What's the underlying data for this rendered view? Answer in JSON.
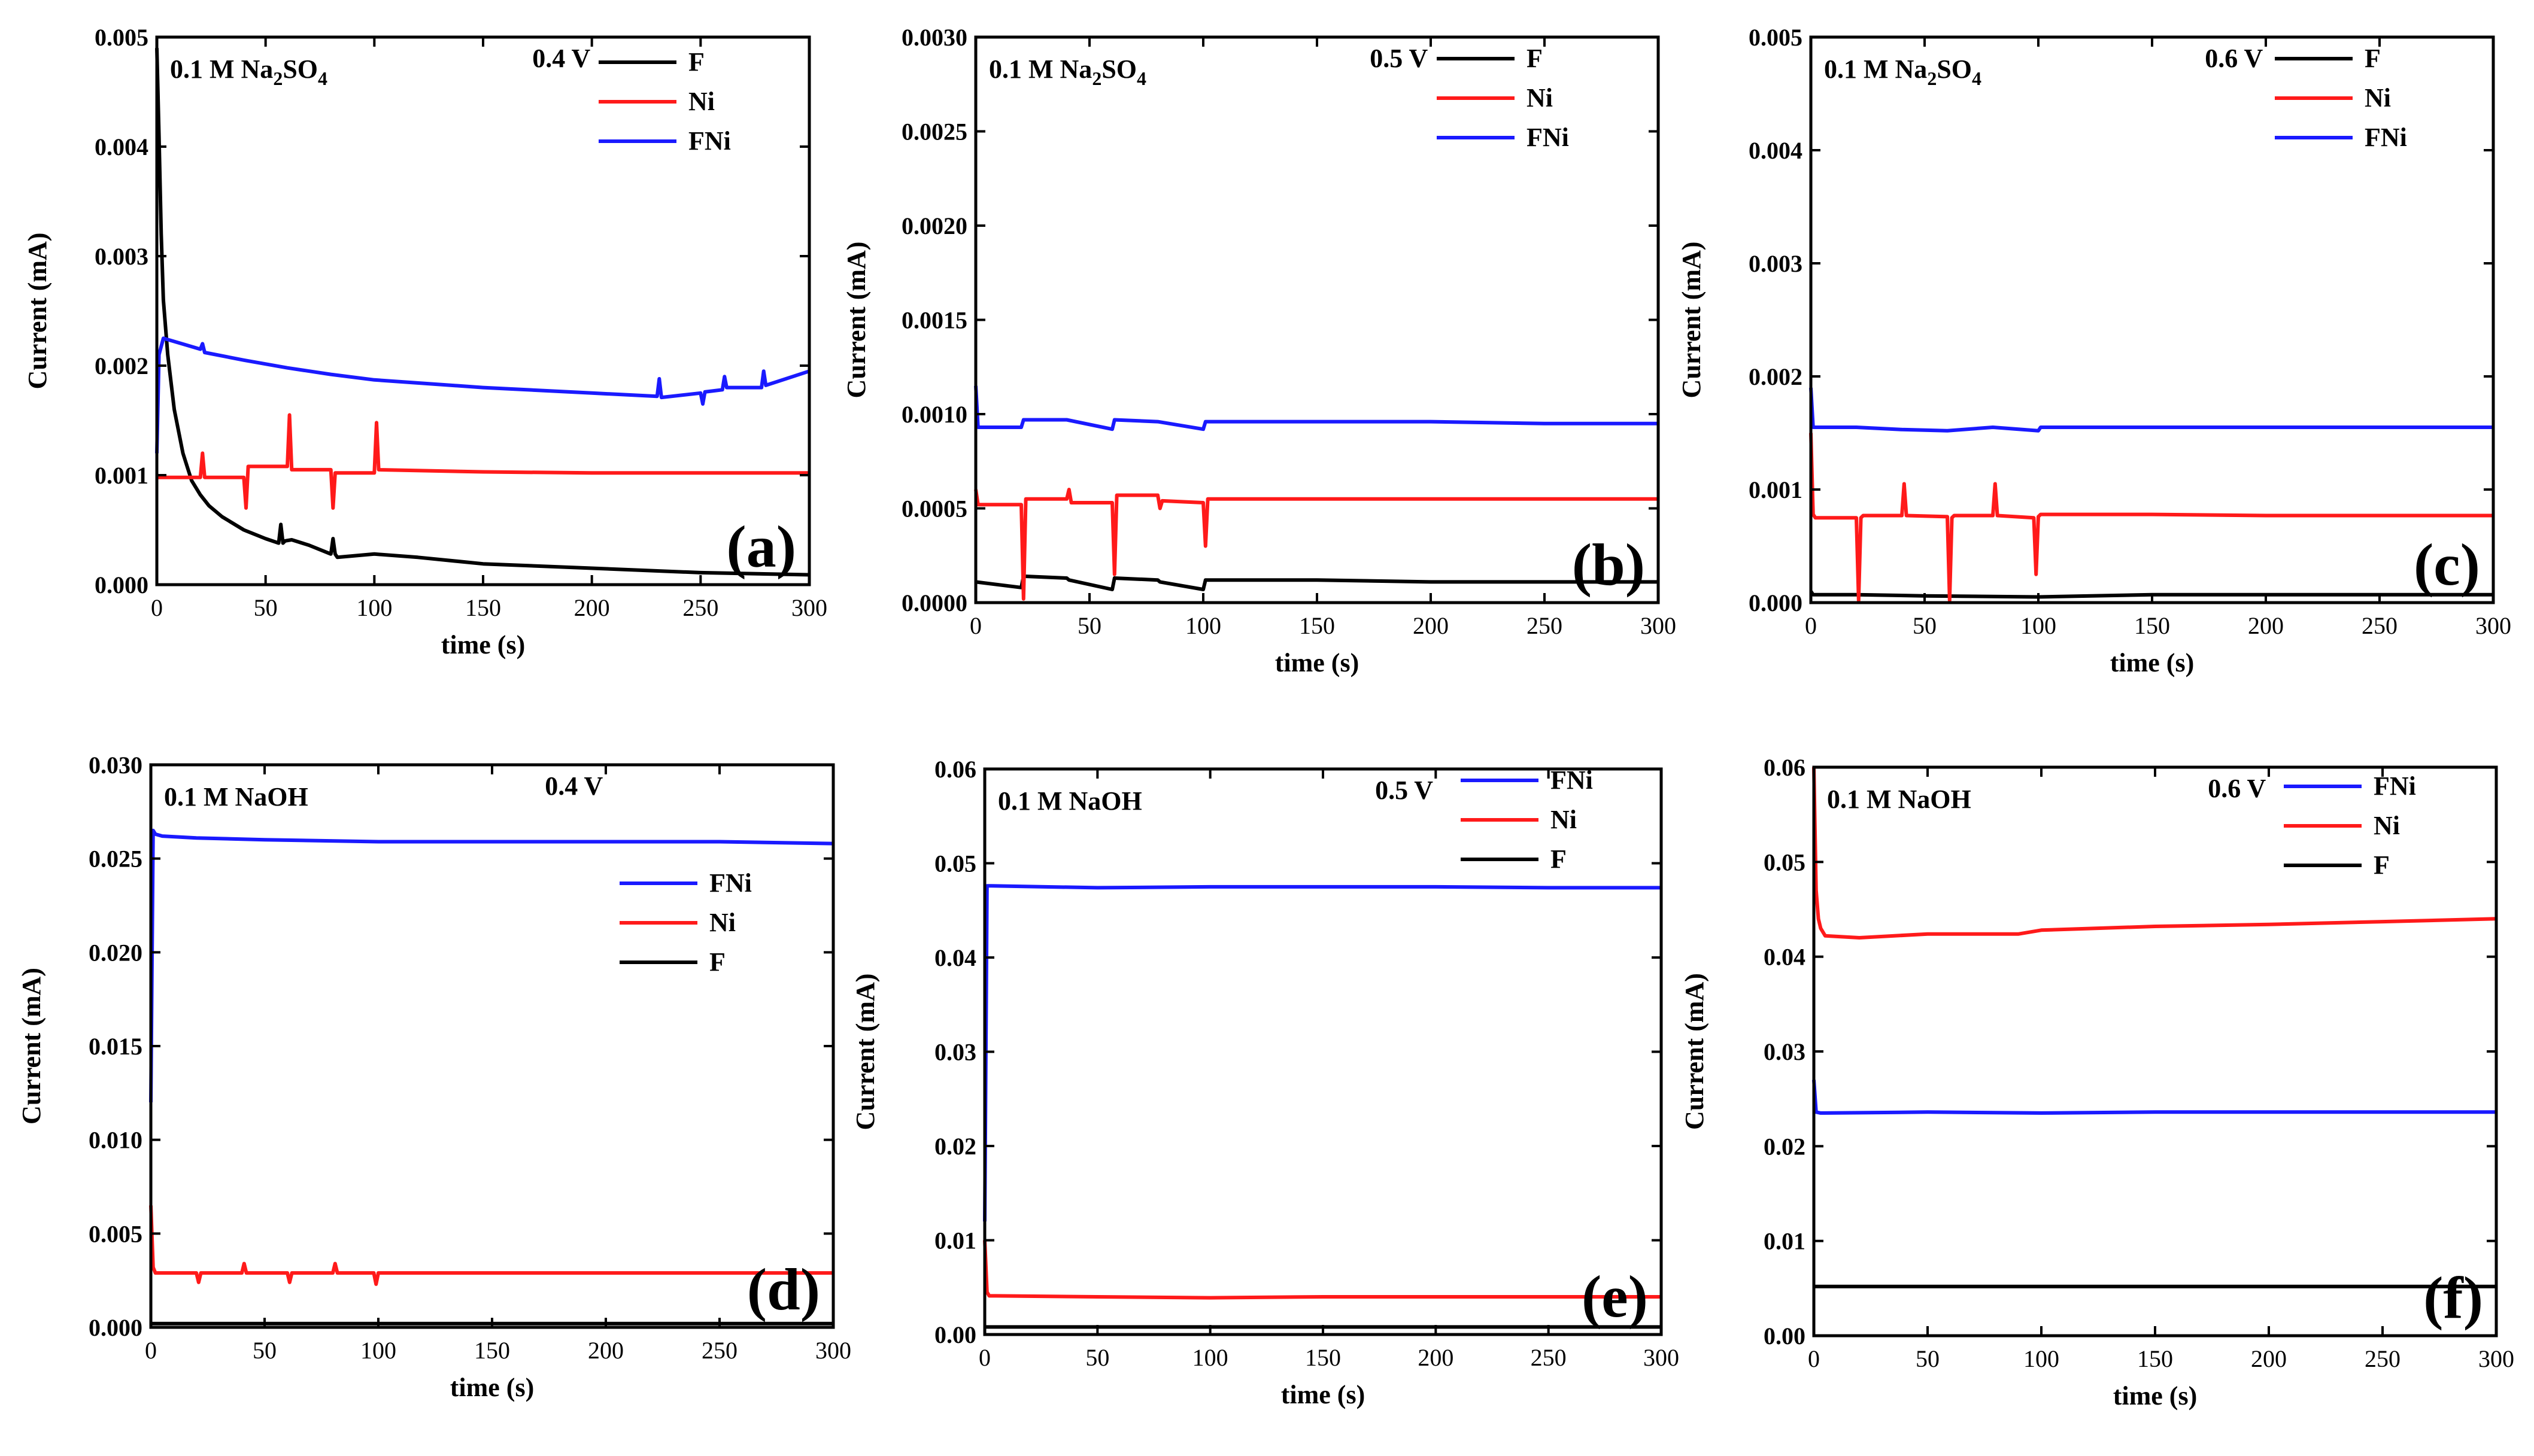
{
  "panels": [
    {
      "letter": "(a)",
      "electrolyte_prefix": "0.1 M Na",
      "electrolyte_sub": "2",
      "electrolyte_mid": "SO",
      "electrolyte_sub2": "4",
      "voltage": "0.4 V",
      "xlabel": "time (s)",
      "ylabel": "Current (mA)",
      "xlim": [
        0,
        300
      ],
      "ylim": [
        0,
        0.005
      ],
      "xticks": [
        "0",
        "50",
        "100",
        "150",
        "200",
        "250",
        "300"
      ],
      "yticks": [
        "0.000",
        "0.001",
        "0.002",
        "0.003",
        "0.004",
        "0.005"
      ],
      "legend_order": [
        "F",
        "Ni",
        "FNi"
      ]
    },
    {
      "letter": "(b)",
      "electrolyte_prefix": "0.1 M Na",
      "electrolyte_sub": "2",
      "electrolyte_mid": "SO",
      "electrolyte_sub2": "4",
      "voltage": "0.5 V",
      "xlabel": "time (s)",
      "ylabel": "Current (mA)",
      "xlim": [
        0,
        300
      ],
      "ylim": [
        0,
        0.003
      ],
      "xticks": [
        "0",
        "50",
        "100",
        "150",
        "200",
        "250",
        "300"
      ],
      "yticks": [
        "0.0000",
        "0.0005",
        "0.0010",
        "0.0015",
        "0.0020",
        "0.0025",
        "0.0030"
      ],
      "legend_order": [
        "F",
        "Ni",
        "FNi"
      ]
    },
    {
      "letter": "(c)",
      "electrolyte_prefix": "0.1 M Na",
      "electrolyte_sub": "2",
      "electrolyte_mid": "SO",
      "electrolyte_sub2": "4",
      "voltage": "0.6 V",
      "xlabel": "time (s)",
      "ylabel": "Current (mA)",
      "xlim": [
        0,
        300
      ],
      "ylim": [
        0,
        0.005
      ],
      "xticks": [
        "0",
        "50",
        "100",
        "150",
        "200",
        "250",
        "300"
      ],
      "yticks": [
        "0.000",
        "0.001",
        "0.002",
        "0.003",
        "0.004",
        "0.005"
      ],
      "legend_order": [
        "F",
        "Ni",
        "FNi"
      ]
    },
    {
      "letter": "(d)",
      "electrolyte_prefix": "0.1 M NaOH",
      "electrolyte_sub": "",
      "electrolyte_mid": "",
      "electrolyte_sub2": "",
      "voltage": "0.4 V",
      "xlabel": "time (s)",
      "ylabel": "Current (mA)",
      "xlim": [
        0,
        300
      ],
      "ylim": [
        0,
        0.03
      ],
      "xticks": [
        "0",
        "50",
        "100",
        "150",
        "200",
        "250",
        "300"
      ],
      "yticks": [
        "0.000",
        "0.005",
        "0.010",
        "0.015",
        "0.020",
        "0.025",
        "0.030"
      ],
      "legend_order": [
        "FNi",
        "Ni",
        "F"
      ]
    },
    {
      "letter": "(e)",
      "electrolyte_prefix": "0.1 M NaOH",
      "electrolyte_sub": "",
      "electrolyte_mid": "",
      "electrolyte_sub2": "",
      "voltage": "0.5 V",
      "xlabel": "time (s)",
      "ylabel": "Current (mA)",
      "xlim": [
        0,
        300
      ],
      "ylim": [
        0,
        0.06
      ],
      "xticks": [
        "0",
        "50",
        "100",
        "150",
        "200",
        "250",
        "300"
      ],
      "yticks": [
        "0.00",
        "0.01",
        "0.02",
        "0.03",
        "0.04",
        "0.05",
        "0.06"
      ],
      "legend_order": [
        "FNi",
        "Ni",
        "F"
      ]
    },
    {
      "letter": "(f)",
      "electrolyte_prefix": "0.1 M NaOH",
      "electrolyte_sub": "",
      "electrolyte_mid": "",
      "electrolyte_sub2": "",
      "voltage": "0.6 V",
      "xlabel": "time (s)",
      "ylabel": "Current (mA)",
      "xlim": [
        0,
        300
      ],
      "ylim": [
        0,
        0.06
      ],
      "xticks": [
        "0",
        "50",
        "100",
        "150",
        "200",
        "250",
        "300"
      ],
      "yticks": [
        "0.00",
        "0.01",
        "0.02",
        "0.03",
        "0.04",
        "0.05",
        "0.06"
      ],
      "legend_order": [
        "FNi",
        "Ni",
        "F"
      ]
    }
  ],
  "series_colors": {
    "F": "#000000",
    "Ni": "#ff1a1a",
    "FNi": "#1a1aff"
  },
  "chart_data": [
    {
      "type": "line",
      "title": "0.1 M Na2SO4 0.4 V (a)",
      "xlabel": "time (s)",
      "ylabel": "Current (mA)",
      "xlim": [
        0,
        300
      ],
      "ylim": [
        0,
        0.005
      ],
      "legend": "top-right",
      "series": [
        {
          "name": "F",
          "x": [
            0,
            1,
            2,
            3,
            5,
            8,
            12,
            16,
            20,
            24,
            30,
            40,
            50,
            56,
            57,
            58,
            59,
            62,
            70,
            80,
            81,
            82,
            83,
            100,
            120,
            150,
            200,
            250,
            300
          ],
          "values": [
            0.0049,
            0.0041,
            0.0032,
            0.0026,
            0.0021,
            0.0016,
            0.0012,
            0.00095,
            0.00082,
            0.00072,
            0.00062,
            0.0005,
            0.00042,
            0.00038,
            0.00055,
            0.00038,
            0.0004,
            0.00041,
            0.00036,
            0.00028,
            0.00042,
            0.00028,
            0.00025,
            0.00028,
            0.00025,
            0.00019,
            0.00015,
            0.00011,
            9e-05
          ]
        },
        {
          "name": "Ni",
          "x": [
            0,
            1,
            20,
            21,
            22,
            40,
            41,
            42,
            60,
            61,
            62,
            80,
            81,
            82,
            100,
            101,
            102,
            150,
            200,
            250,
            300
          ],
          "values": [
            0.00098,
            0.00098,
            0.00098,
            0.0012,
            0.00098,
            0.00098,
            0.0007,
            0.00108,
            0.00108,
            0.00155,
            0.00105,
            0.00105,
            0.0007,
            0.00102,
            0.00102,
            0.00148,
            0.00105,
            0.00103,
            0.00102,
            0.00102,
            0.00102
          ]
        },
        {
          "name": "FNi",
          "x": [
            0,
            1,
            3,
            20,
            21,
            22,
            40,
            60,
            80,
            100,
            150,
            200,
            230,
            231,
            232,
            250,
            251,
            252,
            260,
            261,
            262,
            278,
            279,
            280,
            300
          ],
          "values": [
            0.0012,
            0.0021,
            0.00225,
            0.00215,
            0.0022,
            0.00212,
            0.00205,
            0.00198,
            0.00192,
            0.00187,
            0.0018,
            0.00175,
            0.00172,
            0.00188,
            0.00171,
            0.00175,
            0.00165,
            0.00176,
            0.00178,
            0.0019,
            0.0018,
            0.0018,
            0.00195,
            0.00182,
            0.00195
          ]
        }
      ]
    },
    {
      "type": "line",
      "title": "0.1 M Na2SO4 0.5 V (b)",
      "xlabel": "time (s)",
      "ylabel": "Current (mA)",
      "xlim": [
        0,
        300
      ],
      "ylim": [
        0,
        0.003
      ],
      "legend": "top-right",
      "series": [
        {
          "name": "F",
          "x": [
            0,
            20,
            21,
            40,
            41,
            60,
            61,
            80,
            81,
            100,
            101,
            150,
            200,
            250,
            300
          ],
          "values": [
            0.00011,
            8e-05,
            0.00014,
            0.00013,
            0.00012,
            7e-05,
            0.00013,
            0.00012,
            0.00011,
            7e-05,
            0.00012,
            0.00012,
            0.00011,
            0.00011,
            0.00011
          ]
        },
        {
          "name": "Ni",
          "x": [
            0,
            1,
            20,
            21,
            22,
            23,
            40,
            41,
            42,
            60,
            61,
            62,
            63,
            80,
            81,
            82,
            100,
            101,
            102,
            103,
            150,
            200,
            250,
            300
          ],
          "values": [
            0.0006,
            0.00052,
            0.00052,
            2e-05,
            0.00055,
            0.00055,
            0.00055,
            0.0006,
            0.00053,
            0.00053,
            0.00015,
            0.00057,
            0.00057,
            0.00057,
            0.0005,
            0.00054,
            0.00053,
            0.0003,
            0.00055,
            0.00055,
            0.00055,
            0.00055,
            0.00055,
            0.00055
          ]
        },
        {
          "name": "FNi",
          "x": [
            0,
            1,
            20,
            21,
            40,
            60,
            61,
            80,
            100,
            101,
            150,
            200,
            250,
            300
          ],
          "values": [
            0.00115,
            0.00093,
            0.00093,
            0.00097,
            0.00097,
            0.00092,
            0.00097,
            0.00096,
            0.00092,
            0.00096,
            0.00096,
            0.00096,
            0.00095,
            0.00095
          ]
        }
      ]
    },
    {
      "type": "line",
      "title": "0.1 M Na2SO4 0.6 V (c)",
      "xlabel": "time (s)",
      "ylabel": "Current (mA)",
      "xlim": [
        0,
        300
      ],
      "ylim": [
        0,
        0.005
      ],
      "legend": "top-right",
      "series": [
        {
          "name": "F",
          "x": [
            0,
            1,
            20,
            50,
            100,
            150,
            200,
            250,
            300
          ],
          "values": [
            0.0001,
            7e-05,
            7e-05,
            6e-05,
            5e-05,
            7e-05,
            7e-05,
            7e-05,
            7e-05
          ]
        },
        {
          "name": "Ni",
          "x": [
            0,
            1,
            2,
            20,
            21,
            22,
            23,
            40,
            41,
            42,
            60,
            61,
            62,
            63,
            80,
            81,
            82,
            98,
            99,
            100,
            101,
            150,
            200,
            250,
            300
          ],
          "values": [
            0.0015,
            0.00078,
            0.00075,
            0.00075,
            2e-05,
            0.00075,
            0.00077,
            0.00077,
            0.00105,
            0.00077,
            0.00076,
            2e-05,
            0.00075,
            0.00077,
            0.00077,
            0.00105,
            0.00077,
            0.00075,
            0.00025,
            0.00076,
            0.00078,
            0.00078,
            0.00077,
            0.00077,
            0.00077
          ]
        },
        {
          "name": "FNi",
          "x": [
            0,
            1,
            2,
            20,
            40,
            60,
            80,
            100,
            101,
            150,
            200,
            250,
            300
          ],
          "values": [
            0.0019,
            0.00155,
            0.00155,
            0.00155,
            0.00153,
            0.00152,
            0.00155,
            0.00152,
            0.00155,
            0.00155,
            0.00155,
            0.00155,
            0.00155
          ]
        }
      ]
    },
    {
      "type": "line",
      "title": "0.1 M NaOH 0.4 V (d)",
      "xlabel": "time (s)",
      "ylabel": "Current (mA)",
      "xlim": [
        0,
        300
      ],
      "ylim": [
        0,
        0.03
      ],
      "legend": "center-right",
      "series": [
        {
          "name": "FNi",
          "x": [
            0,
            1,
            2,
            5,
            20,
            50,
            100,
            150,
            200,
            250,
            300
          ],
          "values": [
            0.012,
            0.0265,
            0.0263,
            0.0262,
            0.0261,
            0.026,
            0.0259,
            0.0259,
            0.0259,
            0.0259,
            0.0258
          ]
        },
        {
          "name": "Ni",
          "x": [
            0,
            1,
            2,
            20,
            21,
            22,
            40,
            41,
            42,
            60,
            61,
            62,
            80,
            81,
            82,
            98,
            99,
            100,
            150,
            200,
            250,
            300
          ],
          "values": [
            0.0065,
            0.0032,
            0.0029,
            0.0029,
            0.0024,
            0.0029,
            0.0029,
            0.0034,
            0.0029,
            0.0029,
            0.0024,
            0.0029,
            0.0029,
            0.0034,
            0.0029,
            0.0029,
            0.0023,
            0.0029,
            0.0029,
            0.0029,
            0.0029,
            0.0029
          ]
        },
        {
          "name": "F",
          "x": [
            0,
            300
          ],
          "values": [
            0.0002,
            0.0002
          ]
        }
      ]
    },
    {
      "type": "line",
      "title": "0.1 M NaOH 0.5 V (e)",
      "xlabel": "time (s)",
      "ylabel": "Current (mA)",
      "xlim": [
        0,
        300
      ],
      "ylim": [
        0,
        0.06
      ],
      "legend": "top-right",
      "series": [
        {
          "name": "FNi",
          "x": [
            0,
            1,
            3,
            50,
            100,
            150,
            200,
            250,
            300
          ],
          "values": [
            0.012,
            0.0476,
            0.0476,
            0.0474,
            0.0475,
            0.0475,
            0.0475,
            0.0474,
            0.0474
          ]
        },
        {
          "name": "Ni",
          "x": [
            0,
            1,
            2,
            5,
            50,
            100,
            150,
            200,
            250,
            300
          ],
          "values": [
            0.01,
            0.0045,
            0.0041,
            0.0041,
            0.004,
            0.0039,
            0.004,
            0.004,
            0.004,
            0.004
          ]
        },
        {
          "name": "F",
          "x": [
            0,
            300
          ],
          "values": [
            0.0008,
            0.0008
          ]
        }
      ]
    },
    {
      "type": "line",
      "title": "0.1 M NaOH 0.6 V (f)",
      "xlabel": "time (s)",
      "ylabel": "Current (mA)",
      "xlim": [
        0,
        300
      ],
      "ylim": [
        0,
        0.06
      ],
      "legend": "top-right",
      "series": [
        {
          "name": "FNi",
          "x": [
            0,
            1,
            3,
            50,
            100,
            150,
            200,
            250,
            300
          ],
          "values": [
            0.027,
            0.0236,
            0.0235,
            0.0236,
            0.0235,
            0.0236,
            0.0236,
            0.0236,
            0.0236
          ]
        },
        {
          "name": "Ni",
          "x": [
            0,
            1,
            2,
            3,
            5,
            20,
            50,
            90,
            100,
            150,
            200,
            250,
            300
          ],
          "values": [
            0.06,
            0.047,
            0.044,
            0.043,
            0.0422,
            0.042,
            0.0424,
            0.0424,
            0.0428,
            0.0432,
            0.0434,
            0.0437,
            0.044
          ]
        },
        {
          "name": "F",
          "x": [
            0,
            300
          ],
          "values": [
            0.0052,
            0.0052
          ]
        }
      ]
    }
  ]
}
